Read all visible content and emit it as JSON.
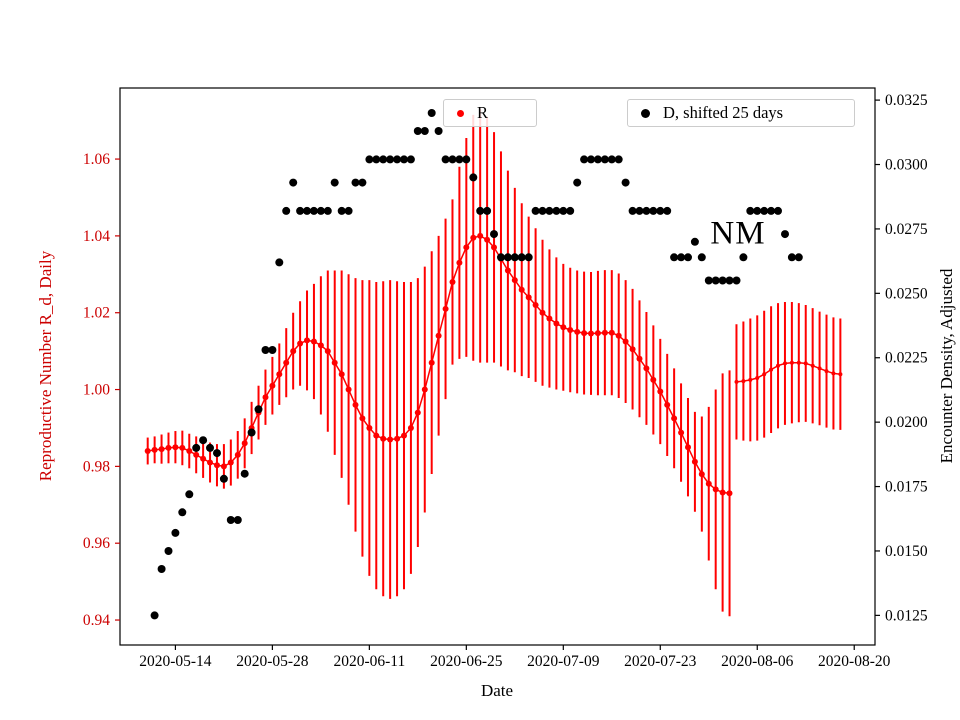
{
  "colors": {
    "red": "#ff0000",
    "red_text": "#cc0000",
    "black": "#000000",
    "legend_border": "#cccccc"
  },
  "chart_data": {
    "type": "scatter",
    "title": "",
    "xlabel": "Date",
    "ylabel_left": "Reproductive Number R_d, Daily",
    "ylabel_right": "Encounter Density, Adjusted",
    "annotations": [
      {
        "text": "NM",
        "x": "2020-08-03",
        "y_left": 1.04
      }
    ],
    "legend": [
      {
        "label": "R",
        "color": "#ff0000"
      },
      {
        "label": "D, shifted 25 days",
        "color": "#000000"
      }
    ],
    "grid": false,
    "x_ticks": [
      "2020-05-14",
      "2020-05-28",
      "2020-06-11",
      "2020-06-25",
      "2020-07-09",
      "2020-07-23",
      "2020-08-06",
      "2020-08-20"
    ],
    "y_ticks_left": [
      "0.94",
      "0.96",
      "0.98",
      "1.00",
      "1.02",
      "1.04",
      "1.06"
    ],
    "y_ticks_right": [
      "0.0125",
      "0.0150",
      "0.0175",
      "0.0200",
      "0.0225",
      "0.0250",
      "0.0275",
      "0.0300",
      "0.0325"
    ],
    "xlim": [
      "2020-05-06",
      "2020-08-23"
    ],
    "ylim_left": [
      0.9335,
      1.0785
    ],
    "ylim_right": [
      0.01135,
      0.03297
    ],
    "series": [
      {
        "name": "R",
        "segment": "main",
        "axis": "left",
        "color": "#ff0000",
        "marker": "circle",
        "marker_radius": 3,
        "line": true,
        "cadence": "daily",
        "start_date": "2020-05-10",
        "values": [
          0.984,
          0.9843,
          0.9845,
          0.9848,
          0.985,
          0.9848,
          0.984,
          0.983,
          0.982,
          0.981,
          0.9803,
          0.98,
          0.981,
          0.983,
          0.986,
          0.99,
          0.994,
          0.998,
          1.001,
          1.004,
          1.007,
          1.01,
          1.012,
          1.0128,
          1.0125,
          1.0115,
          1.01,
          1.007,
          1.004,
          1.0,
          0.996,
          0.9925,
          0.99,
          0.988,
          0.9872,
          0.987,
          0.9872,
          0.988,
          0.99,
          0.994,
          1.0,
          1.007,
          1.014,
          1.021,
          1.028,
          1.033,
          1.037,
          1.0395,
          1.04,
          1.039,
          1.037,
          1.034,
          1.031,
          1.0285,
          1.026,
          1.024,
          1.022,
          1.02,
          1.0185,
          1.0172,
          1.0162,
          1.0155,
          1.015,
          1.0147,
          1.0146,
          1.0147,
          1.0148,
          1.0148,
          1.014,
          1.0125,
          1.0105,
          1.008,
          1.0055,
          1.0025,
          0.9995,
          0.996,
          0.9925,
          0.9888,
          0.985,
          0.9812,
          0.978,
          0.9755,
          0.974,
          0.9732,
          0.973
        ],
        "errors": [
          0.0035,
          0.0035,
          0.0038,
          0.004,
          0.0042,
          0.0045,
          0.0045,
          0.0048,
          0.005,
          0.0052,
          0.0055,
          0.0058,
          0.006,
          0.0062,
          0.0065,
          0.0068,
          0.007,
          0.0072,
          0.0075,
          0.008,
          0.009,
          0.01,
          0.011,
          0.013,
          0.015,
          0.018,
          0.021,
          0.024,
          0.027,
          0.03,
          0.033,
          0.036,
          0.0385,
          0.04,
          0.041,
          0.0415,
          0.041,
          0.04,
          0.038,
          0.035,
          0.032,
          0.029,
          0.026,
          0.0235,
          0.0215,
          0.025,
          0.0285,
          0.032,
          0.033,
          0.032,
          0.03,
          0.028,
          0.026,
          0.024,
          0.0225,
          0.021,
          0.02,
          0.019,
          0.018,
          0.0172,
          0.0165,
          0.0162,
          0.016,
          0.016,
          0.016,
          0.0162,
          0.0163,
          0.0163,
          0.0162,
          0.016,
          0.0157,
          0.0152,
          0.0147,
          0.0142,
          0.0137,
          0.0133,
          0.013,
          0.0128,
          0.0128,
          0.013,
          0.015,
          0.02,
          0.026,
          0.031,
          0.032
        ]
      },
      {
        "name": "R",
        "segment": "tail",
        "axis": "left",
        "color": "#ff0000",
        "marker": "circle",
        "marker_radius": 2,
        "line": true,
        "cadence": "daily",
        "start_date": "2020-08-03",
        "values": [
          1.002,
          1.0022,
          1.0025,
          1.003,
          1.004,
          1.0052,
          1.0062,
          1.0068,
          1.007,
          1.007,
          1.0068,
          1.0062,
          1.0055,
          1.0048,
          1.0042,
          1.004
        ],
        "errors": [
          0.015,
          0.0155,
          0.016,
          0.0163,
          0.0165,
          0.0165,
          0.0163,
          0.016,
          0.0158,
          0.0155,
          0.0152,
          0.015,
          0.0148,
          0.0147,
          0.0146,
          0.0145
        ]
      },
      {
        "name": "D, shifted 25 days",
        "segment": "main",
        "axis": "right",
        "color": "#000000",
        "marker": "circle",
        "marker_radius": 4,
        "line": false,
        "cadence": "daily",
        "start_date": "2020-05-11",
        "values": [
          0.0125,
          0.0143,
          0.015,
          0.0157,
          0.0165,
          0.0172,
          0.019,
          0.0193,
          0.019,
          0.0188,
          0.0178,
          0.0162,
          0.0162,
          0.018,
          0.0196,
          0.0205,
          0.0228,
          0.0228,
          0.0262,
          0.0282,
          0.0293,
          0.0282,
          0.0282,
          0.0282,
          0.0282,
          0.0282,
          0.0293,
          0.0282,
          0.0282,
          0.0293,
          0.0293,
          0.0302,
          0.0302,
          0.0302,
          0.0302,
          0.0302,
          0.0302,
          0.0302,
          0.0313,
          0.0313,
          0.032,
          0.0313,
          0.0302,
          0.0302,
          0.0302,
          0.0302,
          0.0295,
          0.0282,
          0.0282,
          0.0273,
          0.0264,
          0.0264,
          0.0264,
          0.0264,
          0.0264,
          0.0282,
          0.0282,
          0.0282,
          0.0282,
          0.0282,
          0.0282,
          0.0293,
          0.0302,
          0.0302,
          0.0302,
          0.0302,
          0.0302,
          0.0302,
          0.0293,
          0.0282,
          0.0282,
          0.0282,
          0.0282,
          0.0282,
          0.0282,
          0.0264,
          0.0264,
          0.0264,
          0.027,
          0.0264,
          0.0255,
          0.0255,
          0.0255,
          0.0255,
          0.0255,
          0.0264,
          0.0282,
          0.0282,
          0.0282,
          0.0282,
          0.0282,
          0.0273,
          0.0264,
          0.0264
        ]
      }
    ]
  }
}
